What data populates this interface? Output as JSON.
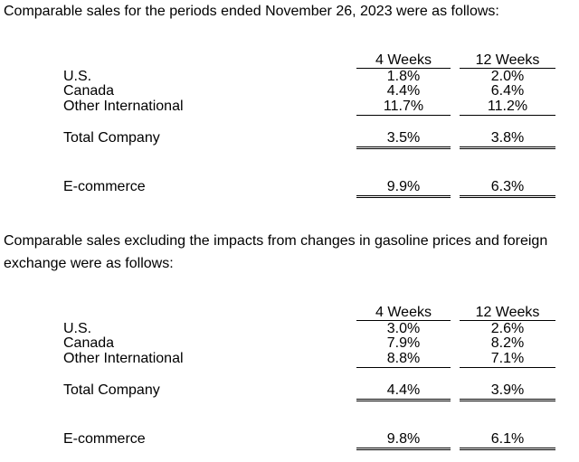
{
  "section1": {
    "intro": "Comparable sales for the periods ended November 26, 2023 were as follows:",
    "col_headers": [
      "4 Weeks",
      "12 Weeks"
    ],
    "rows": [
      {
        "label": "U.S.",
        "w4": "1.8%",
        "w12": "2.0%"
      },
      {
        "label": "Canada",
        "w4": "4.4%",
        "w12": "6.4%"
      },
      {
        "label": "Other International",
        "w4": "11.7%",
        "w12": "11.2%"
      }
    ],
    "total": {
      "label": "Total Company",
      "w4": "3.5%",
      "w12": "3.8%"
    },
    "ecom": {
      "label": "E-commerce",
      "w4": "9.9%",
      "w12": "6.3%"
    }
  },
  "section2": {
    "intro_line1": "Comparable sales excluding the impacts from changes in gasoline prices and foreign",
    "intro_line2": "exchange were as follows:",
    "col_headers": [
      "4 Weeks",
      "12 Weeks"
    ],
    "rows": [
      {
        "label": "U.S.",
        "w4": "3.0%",
        "w12": "2.6%"
      },
      {
        "label": "Canada",
        "w4": "7.9%",
        "w12": "8.2%"
      },
      {
        "label": "Other International",
        "w4": "8.8%",
        "w12": "7.1%"
      }
    ],
    "total": {
      "label": "Total Company",
      "w4": "4.4%",
      "w12": "3.9%"
    },
    "ecom": {
      "label": "E-commerce",
      "w4": "9.8%",
      "w12": "6.1%"
    }
  }
}
